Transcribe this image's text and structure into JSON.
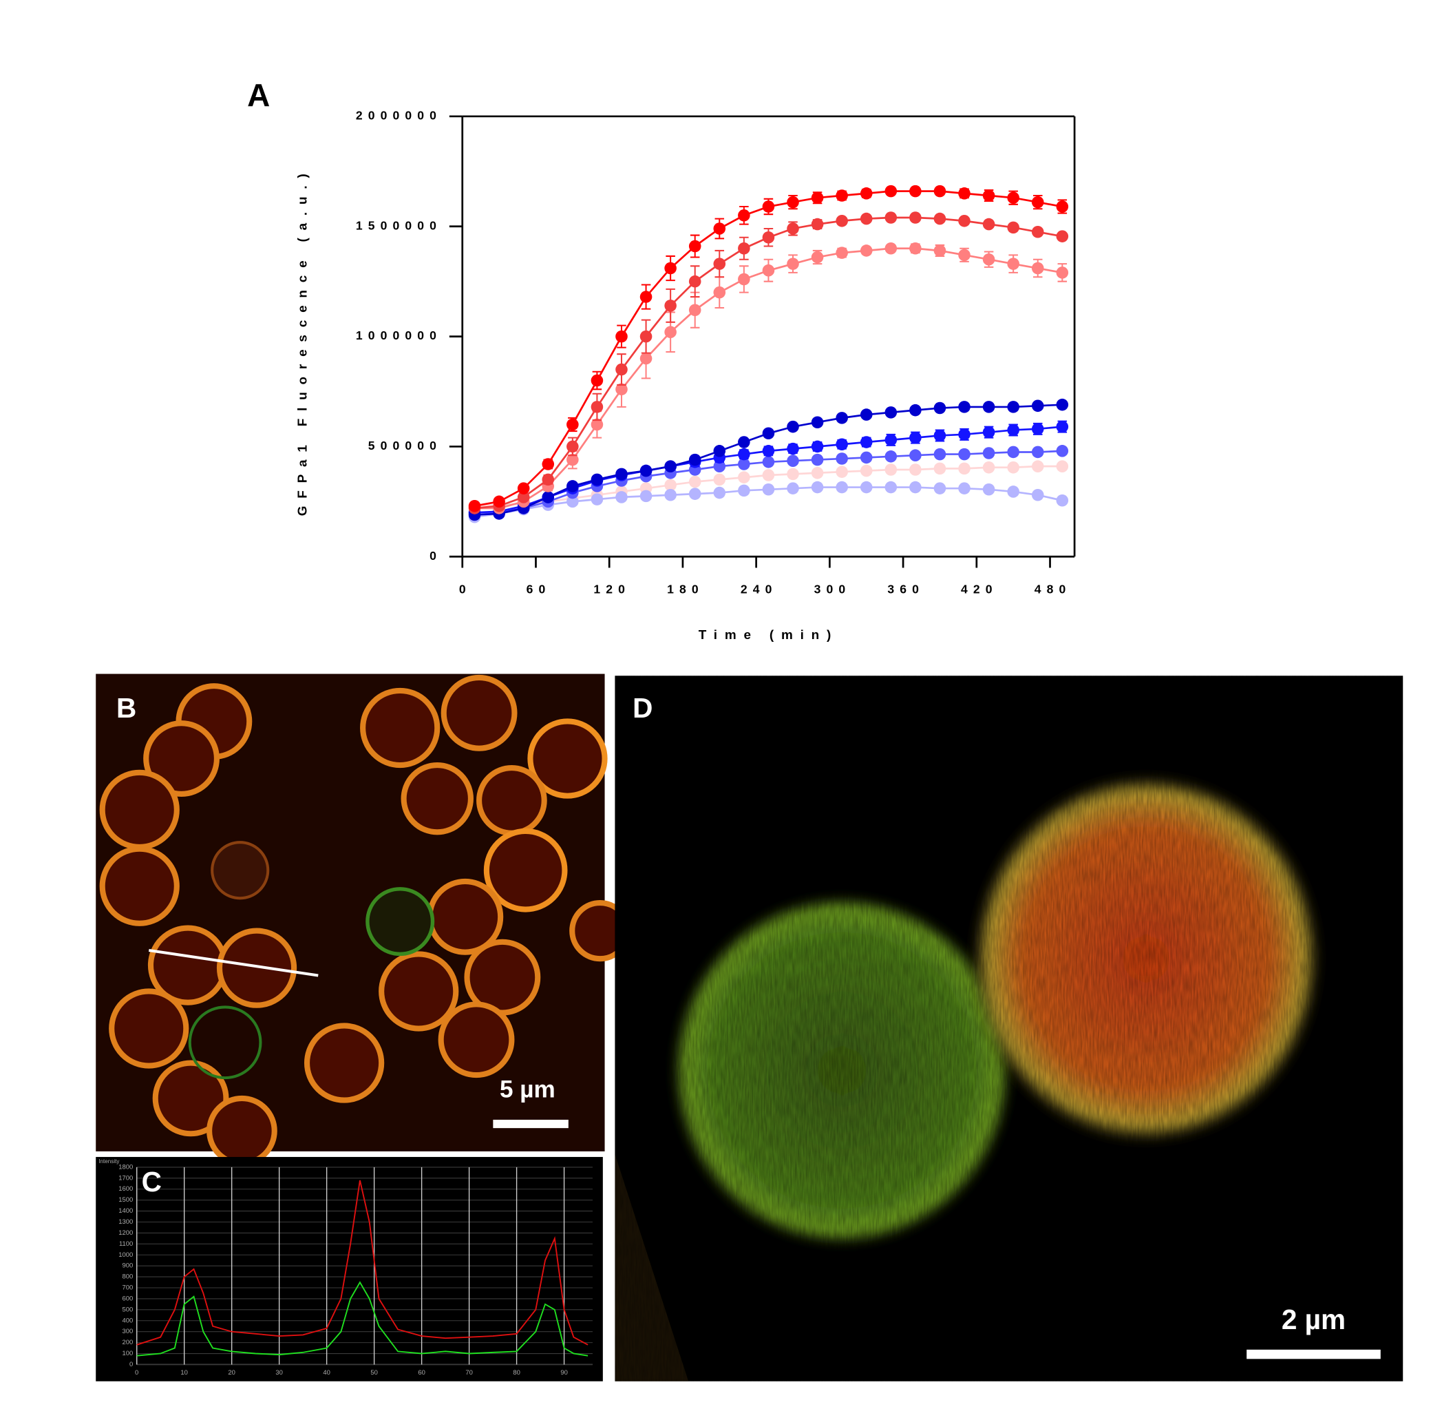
{
  "chart_data": [
    {
      "type": "line",
      "panel": "A",
      "xlabel": "Time (min)",
      "ylabel": "GFPa1 Fluorescence (a.u.)",
      "markers": true,
      "x": [
        10,
        30,
        50,
        70,
        90,
        110,
        130,
        150,
        170,
        190,
        210,
        230,
        250,
        270,
        290,
        310,
        330,
        350,
        370,
        390,
        410,
        430,
        450,
        470,
        490
      ],
      "xlim": [
        0,
        500
      ],
      "xticks": [
        0,
        60,
        120,
        180,
        240,
        300,
        360,
        420,
        480
      ],
      "ylim": [
        0,
        2000000
      ],
      "yticks": [
        0,
        500000,
        1000000,
        1500000,
        2000000
      ],
      "series": [
        {
          "color": "#ffd6d6",
          "values": [
            230000,
            235000,
            240000,
            250000,
            265000,
            280000,
            295000,
            310000,
            325000,
            340000,
            350000,
            360000,
            370000,
            375000,
            380000,
            385000,
            390000,
            395000,
            395000,
            400000,
            400000,
            405000,
            405000,
            410000,
            410000
          ]
        },
        {
          "color": "#b4b4ff",
          "values": [
            180000,
            195000,
            215000,
            235000,
            250000,
            260000,
            270000,
            275000,
            280000,
            285000,
            290000,
            300000,
            305000,
            310000,
            315000,
            315000,
            315000,
            315000,
            315000,
            310000,
            310000,
            305000,
            295000,
            280000,
            255000
          ]
        },
        {
          "color": "#5a5aff",
          "values": [
            200000,
            200000,
            220000,
            250000,
            290000,
            320000,
            345000,
            365000,
            380000,
            395000,
            410000,
            420000,
            430000,
            435000,
            440000,
            445000,
            450000,
            455000,
            460000,
            465000,
            465000,
            470000,
            475000,
            475000,
            480000
          ]
        },
        {
          "color": "#1414ff",
          "values": [
            200000,
            205000,
            230000,
            270000,
            310000,
            345000,
            370000,
            390000,
            410000,
            430000,
            450000,
            465000,
            480000,
            490000,
            500000,
            510000,
            520000,
            530000,
            540000,
            550000,
            555000,
            565000,
            575000,
            580000,
            590000
          ],
          "errors": [
            10000,
            10000,
            10000,
            10000,
            10000,
            15000,
            15000,
            15000,
            15000,
            20000,
            20000,
            20000,
            20000,
            20000,
            20000,
            20000,
            20000,
            25000,
            25000,
            25000,
            25000,
            25000,
            25000,
            25000,
            25000
          ]
        },
        {
          "color": "#0000cd",
          "values": [
            190000,
            195000,
            220000,
            270000,
            320000,
            350000,
            375000,
            390000,
            410000,
            440000,
            480000,
            520000,
            560000,
            590000,
            610000,
            630000,
            645000,
            655000,
            665000,
            675000,
            680000,
            680000,
            680000,
            685000,
            690000
          ]
        },
        {
          "color": "#ff7f7f",
          "values": [
            220000,
            220000,
            250000,
            320000,
            440000,
            600000,
            760000,
            900000,
            1020000,
            1120000,
            1200000,
            1260000,
            1300000,
            1330000,
            1360000,
            1380000,
            1390000,
            1400000,
            1400000,
            1390000,
            1370000,
            1350000,
            1330000,
            1310000,
            1290000
          ],
          "errors": [
            10000,
            10000,
            15000,
            20000,
            40000,
            60000,
            80000,
            90000,
            90000,
            80000,
            70000,
            60000,
            50000,
            40000,
            30000,
            20000,
            15000,
            15000,
            20000,
            25000,
            30000,
            35000,
            40000,
            40000,
            40000
          ]
        },
        {
          "color": "#f03c3c",
          "values": [
            220000,
            230000,
            270000,
            350000,
            500000,
            680000,
            850000,
            1000000,
            1140000,
            1250000,
            1330000,
            1400000,
            1450000,
            1490000,
            1510000,
            1525000,
            1535000,
            1540000,
            1540000,
            1535000,
            1525000,
            1510000,
            1495000,
            1475000,
            1455000
          ],
          "errors": [
            10000,
            10000,
            15000,
            20000,
            40000,
            60000,
            70000,
            75000,
            75000,
            70000,
            60000,
            50000,
            40000,
            30000,
            20000,
            15000,
            10000,
            10000,
            10000,
            10000,
            10000,
            10000,
            10000,
            10000,
            10000
          ]
        },
        {
          "color": "#ff0000",
          "values": [
            230000,
            250000,
            310000,
            420000,
            600000,
            800000,
            1000000,
            1180000,
            1310000,
            1410000,
            1490000,
            1550000,
            1590000,
            1610000,
            1630000,
            1640000,
            1650000,
            1660000,
            1660000,
            1660000,
            1650000,
            1640000,
            1630000,
            1610000,
            1590000
          ],
          "errors": [
            10000,
            10000,
            15000,
            20000,
            30000,
            40000,
            50000,
            55000,
            55000,
            50000,
            45000,
            40000,
            35000,
            30000,
            25000,
            20000,
            18000,
            15000,
            15000,
            15000,
            20000,
            25000,
            30000,
            30000,
            30000
          ]
        }
      ]
    },
    {
      "type": "line",
      "panel": "C",
      "ylabel": "Intensity",
      "markers": false,
      "grid": true,
      "x": [
        0,
        5,
        8,
        10,
        12,
        14,
        16,
        20,
        25,
        30,
        35,
        40,
        43,
        45,
        47,
        49,
        51,
        55,
        60,
        65,
        70,
        75,
        80,
        84,
        86,
        88,
        90,
        92,
        95
      ],
      "xlim": [
        0,
        96
      ],
      "xticks": [
        0,
        10,
        20,
        30,
        40,
        50,
        60,
        70,
        80,
        90
      ],
      "ylim": [
        0,
        1800
      ],
      "yticks": [
        0,
        100,
        200,
        300,
        400,
        500,
        600,
        700,
        800,
        900,
        1000,
        1100,
        1200,
        1300,
        1400,
        1500,
        1600,
        1700,
        1800
      ],
      "series": [
        {
          "color": "#e01010",
          "values": [
            180,
            250,
            500,
            800,
            870,
            650,
            350,
            300,
            280,
            260,
            270,
            330,
            600,
            1100,
            1680,
            1300,
            600,
            320,
            260,
            240,
            250,
            260,
            280,
            500,
            950,
            1150,
            500,
            250,
            180
          ]
        },
        {
          "color": "#20e020",
          "values": [
            80,
            100,
            150,
            550,
            620,
            300,
            150,
            120,
            100,
            90,
            110,
            150,
            300,
            600,
            750,
            600,
            350,
            120,
            100,
            120,
            100,
            110,
            120,
            300,
            550,
            500,
            150,
            100,
            80
          ]
        }
      ]
    }
  ],
  "images": [
    {
      "panel": "B",
      "scale_bar": "5 µm"
    },
    {
      "panel": "D",
      "scale_bar": "2 µm"
    }
  ]
}
